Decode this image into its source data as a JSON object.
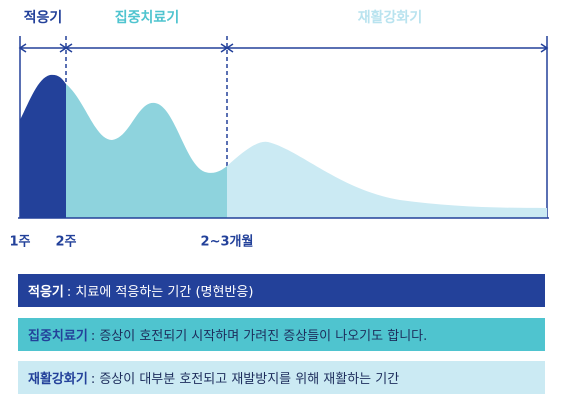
{
  "phases": [
    {
      "label": "적응기"
    },
    {
      "label": "집중치료기"
    },
    {
      "label": "재활강화기"
    }
  ],
  "timeline": [
    "1주",
    "2주",
    "2~3개월"
  ],
  "legend": [
    {
      "term": "적응기",
      "description": ": 치료에 적응하는 기간 (명현반응)"
    },
    {
      "term": "집중치료기",
      "description": ": 증상이 호전되기 시작하며 가려진 증상들이 나오기도 합니다."
    },
    {
      "term": "재활강화기",
      "description": ": 증상이 대부분 호전되고 재발방지를 위해 재활하는 기간"
    }
  ]
}
